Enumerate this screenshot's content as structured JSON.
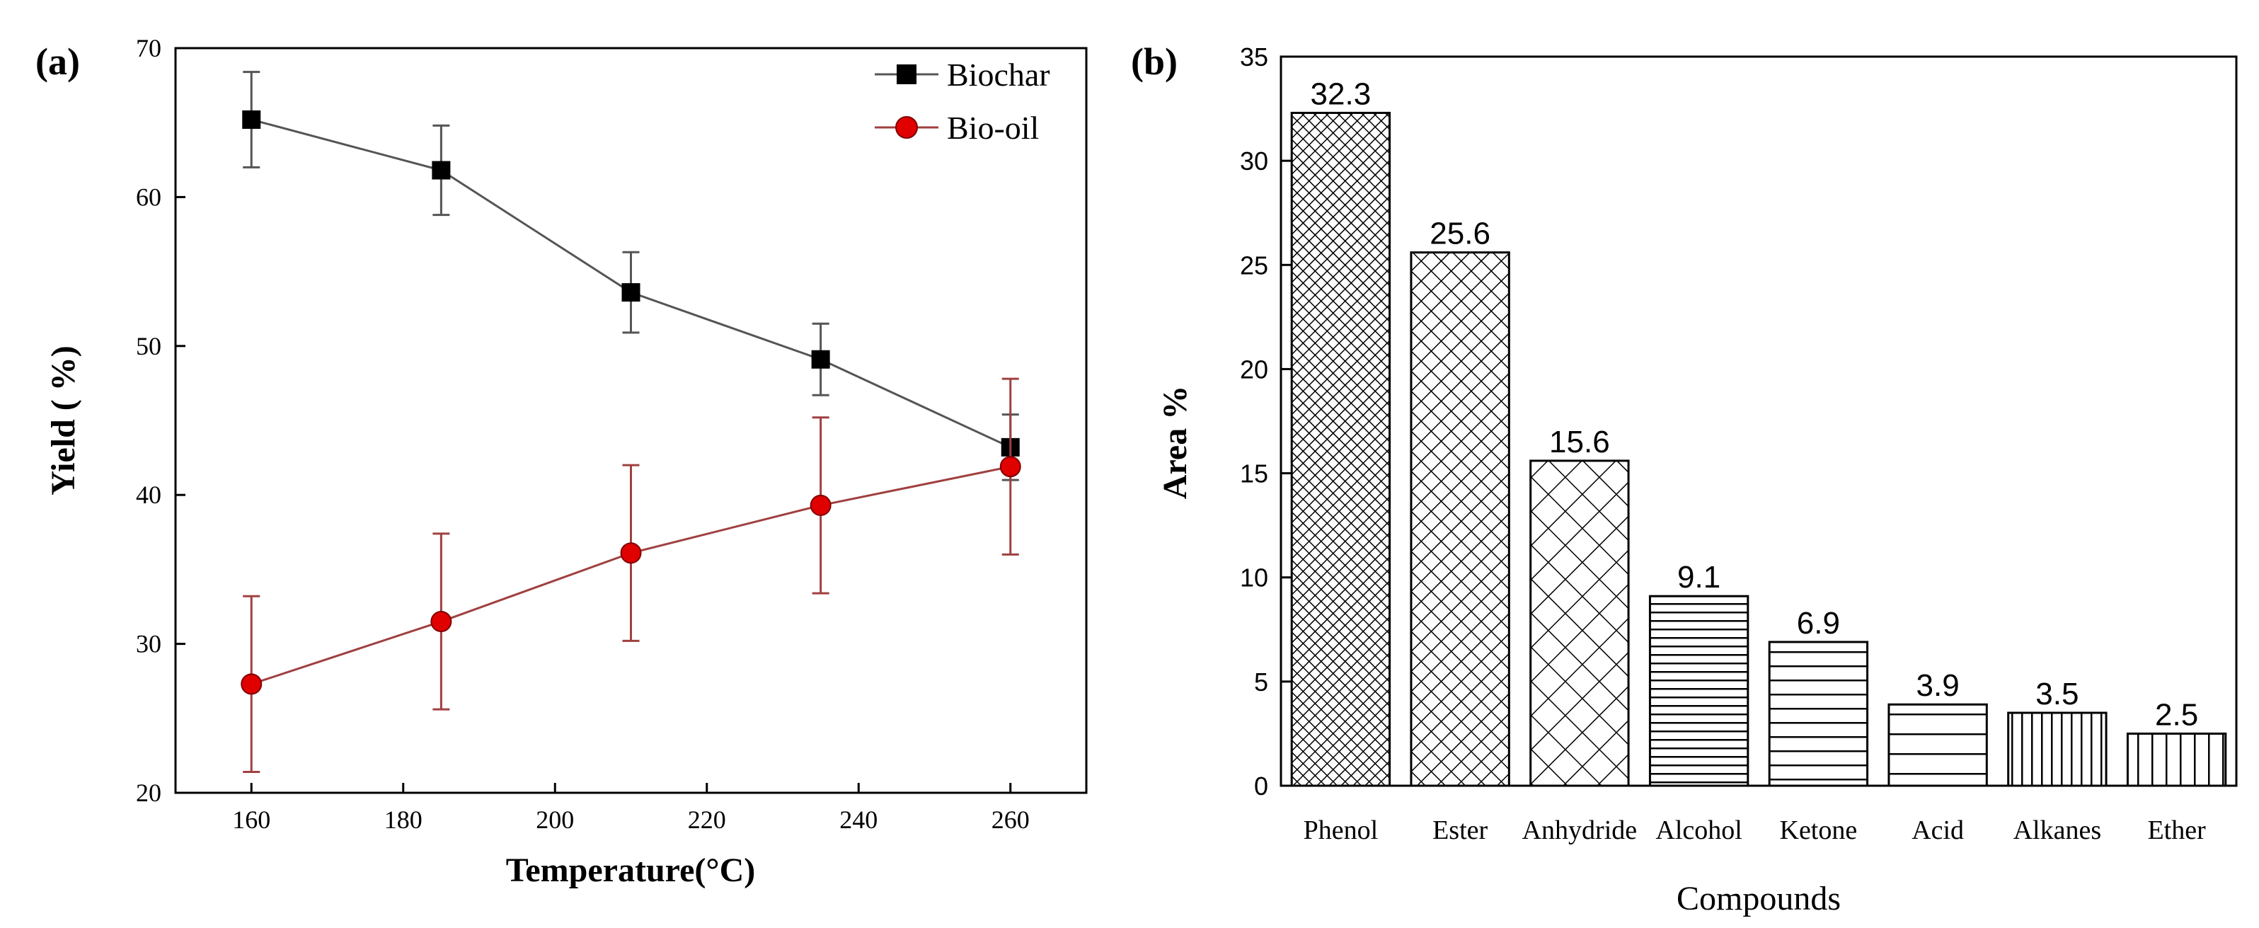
{
  "chart_data": [
    {
      "panel": "(a)",
      "type": "line",
      "xlabel": "Temperature(°C)",
      "ylabel": "Yield ( %)",
      "xlim": [
        150,
        270
      ],
      "ylim": [
        20,
        70
      ],
      "xticks": [
        160,
        180,
        200,
        220,
        240,
        260
      ],
      "yticks": [
        20,
        30,
        40,
        50,
        60,
        70
      ],
      "legend_position": "top-right",
      "series": [
        {
          "name": "Biochar",
          "marker": "square",
          "color": "#000000",
          "line_color": "#555555",
          "x": [
            160,
            185,
            210,
            235,
            260
          ],
          "y": [
            65.2,
            61.8,
            53.6,
            49.1,
            43.2
          ],
          "err": [
            3.2,
            3.0,
            2.7,
            2.4,
            2.2
          ]
        },
        {
          "name": "Bio-oil",
          "marker": "circle",
          "color": "#e00000",
          "line_color": "#a04040",
          "x": [
            160,
            185,
            210,
            235,
            260
          ],
          "y": [
            27.3,
            31.5,
            36.1,
            39.3,
            41.9
          ],
          "err": [
            5.9,
            5.9,
            5.9,
            5.9,
            5.9
          ]
        }
      ]
    },
    {
      "panel": "(b)",
      "type": "bar",
      "xlabel": "Compounds",
      "ylabel": "Area %",
      "ylim": [
        0,
        35
      ],
      "yticks": [
        0,
        5,
        10,
        15,
        20,
        25,
        30,
        35
      ],
      "categories": [
        "Phenol",
        "Ester",
        "Anhydride",
        "Alcohol",
        "Ketone",
        "Acid",
        "Alkanes",
        "Ether"
      ],
      "values": [
        32.3,
        25.6,
        15.6,
        9.1,
        6.9,
        3.9,
        3.5,
        2.5
      ],
      "value_labels": [
        "32.3",
        "25.6",
        "15.6",
        "9.1",
        "6.9",
        "3.9",
        "3.5",
        "2.5"
      ],
      "patterns": [
        "dense-crosshatch",
        "crosshatch",
        "wide-crosshatch",
        "horizontal-dense",
        "horizontal",
        "horizontal-wide",
        "vertical",
        "vertical-wide"
      ]
    }
  ]
}
